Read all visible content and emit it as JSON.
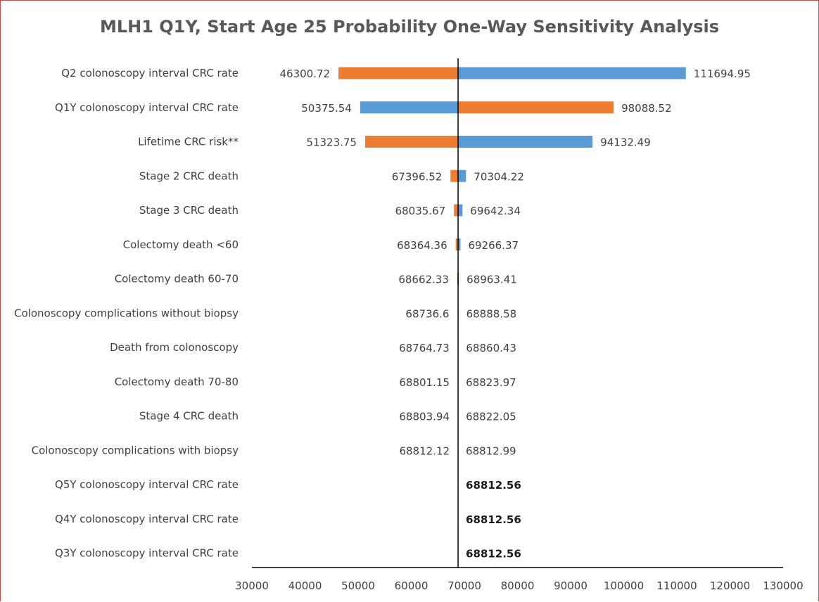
{
  "chart_data": {
    "type": "bar",
    "subtype": "tornado",
    "title": "MLH1 Q1Y, Start Age 25 Probability One-Way Sensitivity Analysis",
    "baseline": 68812.56,
    "xlim": [
      30000,
      130000
    ],
    "xticks": [
      "30000",
      "40000",
      "50000",
      "60000",
      "70000",
      "80000",
      "90000",
      "100000",
      "110000",
      "120000",
      "130000"
    ],
    "colors": {
      "orange": "#ed7d31",
      "blue": "#5b9bd5"
    },
    "rows": [
      {
        "label": "Q2 colonoscopy interval CRC rate",
        "low": 46300.72,
        "low_label": "46300.72",
        "low_color": "#ed7d31",
        "high": 111694.95,
        "high_label": "111694.95",
        "high_color": "#5b9bd5"
      },
      {
        "label": "Q1Y colonoscopy interval CRC rate",
        "low": 50375.54,
        "low_label": "50375.54",
        "low_color": "#5b9bd5",
        "high": 98088.52,
        "high_label": "98088.52",
        "high_color": "#ed7d31"
      },
      {
        "label": "Lifetime CRC risk**",
        "low": 51323.75,
        "low_label": "51323.75",
        "low_color": "#ed7d31",
        "high": 94132.49,
        "high_label": "94132.49",
        "high_color": "#5b9bd5"
      },
      {
        "label": "Stage 2 CRC death",
        "low": 67396.52,
        "low_label": "67396.52",
        "low_color": "#ed7d31",
        "high": 70304.22,
        "high_label": "70304.22",
        "high_color": "#5b9bd5"
      },
      {
        "label": "Stage 3 CRC death",
        "low": 68035.67,
        "low_label": "68035.67",
        "low_color": "#ed7d31",
        "high": 69642.34,
        "high_label": "69642.34",
        "high_color": "#5b9bd5"
      },
      {
        "label": "Colectomy death <60",
        "low": 68364.36,
        "low_label": "68364.36",
        "low_color": "#ed7d31",
        "high": 69266.37,
        "high_label": "69266.37",
        "high_color": "#5b9bd5"
      },
      {
        "label": "Colectomy death 60-70",
        "low": 68662.33,
        "low_label": "68662.33",
        "low_color": "#ed7d31",
        "high": 68963.41,
        "high_label": "68963.41",
        "high_color": "#5b9bd5"
      },
      {
        "label": "Colonoscopy complications without biopsy",
        "low": 68736.6,
        "low_label": "68736.6",
        "low_color": "#ed7d31",
        "high": 68888.58,
        "high_label": "68888.58",
        "high_color": "#5b9bd5"
      },
      {
        "label": "Death from colonoscopy",
        "low": 68764.73,
        "low_label": "68764.73",
        "low_color": "#ed7d31",
        "high": 68860.43,
        "high_label": "68860.43",
        "high_color": "#5b9bd5"
      },
      {
        "label": "Colectomy death 70-80",
        "low": 68801.15,
        "low_label": "68801.15",
        "low_color": "#ed7d31",
        "high": 68823.97,
        "high_label": "68823.97",
        "high_color": "#5b9bd5"
      },
      {
        "label": "Stage 4 CRC death",
        "low": 68803.94,
        "low_label": "68803.94",
        "low_color": "#ed7d31",
        "high": 68822.05,
        "high_label": "68822.05",
        "high_color": "#5b9bd5"
      },
      {
        "label": "Colonoscopy complications with biopsy",
        "low": 68812.12,
        "low_label": "68812.12",
        "low_color": "#ed7d31",
        "high": 68812.99,
        "high_label": "68812.99",
        "high_color": "#5b9bd5"
      },
      {
        "label": "Q5Y colonoscopy interval CRC rate",
        "low": null,
        "low_label": "",
        "low_color": "#ed7d31",
        "high": 68812.56,
        "high_label": "68812.56",
        "high_color": "#5b9bd5"
      },
      {
        "label": "Q4Y colonoscopy interval CRC rate",
        "low": null,
        "low_label": "",
        "low_color": "#ed7d31",
        "high": 68812.56,
        "high_label": "68812.56",
        "high_color": "#5b9bd5"
      },
      {
        "label": "Q3Y colonoscopy interval CRC rate",
        "low": null,
        "low_label": "",
        "low_color": "#ed7d31",
        "high": 68812.56,
        "high_label": "68812.56",
        "high_color": "#5b9bd5"
      }
    ]
  }
}
